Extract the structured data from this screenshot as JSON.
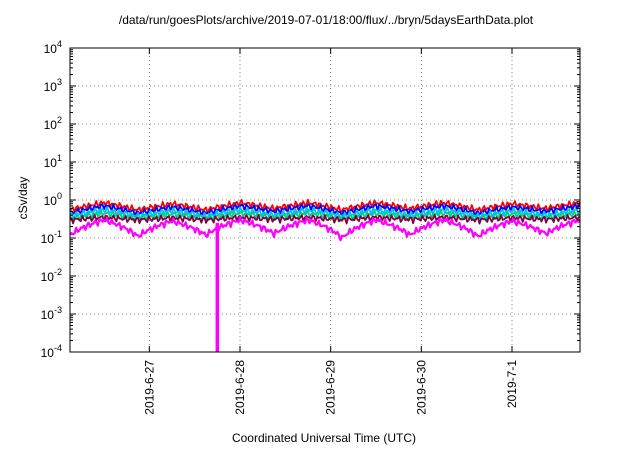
{
  "chart_data": {
    "type": "line",
    "title": "/data/run/goesPlots/archive/2019-07-01/18:00/flux/../bryn/5daysEarthData.plot",
    "xlabel": "Coordinated Universal Time (UTC)",
    "ylabel": "cSv/day",
    "y_scale": "log",
    "ylim": [
      0.0001,
      10000
    ],
    "y_ticks": [
      {
        "value": 0.0001,
        "base": "10",
        "exp": "-4"
      },
      {
        "value": 0.001,
        "base": "10",
        "exp": "-3"
      },
      {
        "value": 0.01,
        "base": "10",
        "exp": "-2"
      },
      {
        "value": 0.1,
        "base": "10",
        "exp": "-1"
      },
      {
        "value": 1,
        "base": "10",
        "exp": "0"
      },
      {
        "value": 10,
        "base": "10",
        "exp": "1"
      },
      {
        "value": 100,
        "base": "10",
        "exp": "2"
      },
      {
        "value": 1000,
        "base": "10",
        "exp": "3"
      },
      {
        "value": 10000,
        "base": "10",
        "exp": "4"
      }
    ],
    "x_range": [
      "2019-06-26T03:00",
      "2019-07-01T18:00"
    ],
    "x_ticks": [
      "2019-6-27",
      "2019-6-28",
      "2019-6-29",
      "2019-6-30",
      "2019-7-1"
    ],
    "grid": true,
    "grid_style": "dotted",
    "legend": "none",
    "series": [
      {
        "color": "#ff0000",
        "x": [
          "2019-06-26T03:00",
          "2019-06-26T12:00",
          "2019-06-26T21:00",
          "2019-06-27T06:00",
          "2019-06-27T15:00",
          "2019-06-28T00:00",
          "2019-06-28T09:00",
          "2019-06-28T18:00",
          "2019-06-29T03:00",
          "2019-06-29T12:00",
          "2019-06-29T21:00",
          "2019-06-30T06:00",
          "2019-06-30T15:00",
          "2019-07-01T00:00",
          "2019-07-01T09:00",
          "2019-07-01T18:00"
        ],
        "y": [
          0.55,
          0.85,
          0.55,
          0.8,
          0.55,
          0.85,
          0.6,
          0.85,
          0.55,
          0.85,
          0.6,
          0.85,
          0.55,
          0.8,
          0.6,
          0.85
        ]
      },
      {
        "color": "#0000ff",
        "x": [
          "2019-06-26T03:00",
          "2019-06-26T12:00",
          "2019-06-26T21:00",
          "2019-06-27T06:00",
          "2019-06-27T15:00",
          "2019-06-28T00:00",
          "2019-06-28T09:00",
          "2019-06-28T18:00",
          "2019-06-29T03:00",
          "2019-06-29T12:00",
          "2019-06-29T21:00",
          "2019-06-30T06:00",
          "2019-06-30T15:00",
          "2019-07-01T00:00",
          "2019-07-01T09:00",
          "2019-07-01T18:00"
        ],
        "y": [
          0.45,
          0.7,
          0.45,
          0.65,
          0.45,
          0.7,
          0.5,
          0.7,
          0.45,
          0.7,
          0.5,
          0.7,
          0.45,
          0.65,
          0.5,
          0.7
        ]
      },
      {
        "color": "#00c0ff",
        "x": [
          "2019-06-26T03:00",
          "2019-06-26T12:00",
          "2019-06-26T21:00",
          "2019-06-27T06:00",
          "2019-06-27T15:00",
          "2019-06-28T00:00",
          "2019-06-28T09:00",
          "2019-06-28T18:00",
          "2019-06-29T03:00",
          "2019-06-29T12:00",
          "2019-06-29T21:00",
          "2019-06-30T06:00",
          "2019-06-30T15:00",
          "2019-07-01T00:00",
          "2019-07-01T09:00",
          "2019-07-01T18:00"
        ],
        "y": [
          0.38,
          0.55,
          0.38,
          0.52,
          0.38,
          0.55,
          0.4,
          0.55,
          0.38,
          0.55,
          0.4,
          0.55,
          0.38,
          0.52,
          0.4,
          0.55
        ]
      },
      {
        "color": "#00d080",
        "x": [
          "2019-06-26T03:00",
          "2019-06-26T12:00",
          "2019-06-26T21:00",
          "2019-06-27T06:00",
          "2019-06-27T15:00",
          "2019-06-28T00:00",
          "2019-06-28T09:00",
          "2019-06-28T18:00",
          "2019-06-29T03:00",
          "2019-06-29T12:00",
          "2019-06-29T21:00",
          "2019-06-30T06:00",
          "2019-06-30T15:00",
          "2019-07-01T00:00",
          "2019-07-01T09:00",
          "2019-07-01T18:00"
        ],
        "y": [
          0.33,
          0.45,
          0.33,
          0.43,
          0.33,
          0.45,
          0.35,
          0.45,
          0.33,
          0.45,
          0.35,
          0.45,
          0.33,
          0.43,
          0.35,
          0.45
        ]
      },
      {
        "color": "#800040",
        "x": [
          "2019-06-26T03:00",
          "2019-06-26T12:00",
          "2019-06-26T21:00",
          "2019-06-27T06:00",
          "2019-06-27T15:00",
          "2019-06-28T00:00",
          "2019-06-28T09:00",
          "2019-06-28T18:00",
          "2019-06-29T03:00",
          "2019-06-29T12:00",
          "2019-06-29T21:00",
          "2019-06-30T06:00",
          "2019-06-30T15:00",
          "2019-07-01T00:00",
          "2019-07-01T09:00",
          "2019-07-01T18:00"
        ],
        "y": [
          0.3,
          0.35,
          0.3,
          0.34,
          0.3,
          0.35,
          0.31,
          0.35,
          0.3,
          0.35,
          0.31,
          0.35,
          0.3,
          0.34,
          0.31,
          0.35
        ]
      },
      {
        "color": "#ff00ff",
        "x": [
          "2019-06-26T03:00",
          "2019-06-26T12:00",
          "2019-06-26T21:00",
          "2019-06-27T06:00",
          "2019-06-27T15:00",
          "2019-06-28T00:00",
          "2019-06-28T09:00",
          "2019-06-28T18:00",
          "2019-06-29T03:00",
          "2019-06-29T12:00",
          "2019-06-29T21:00",
          "2019-06-30T06:00",
          "2019-06-30T15:00",
          "2019-07-01T00:00",
          "2019-07-01T09:00",
          "2019-07-01T18:00"
        ],
        "y": [
          0.12,
          0.3,
          0.11,
          0.28,
          0.12,
          0.3,
          0.13,
          0.3,
          0.1,
          0.3,
          0.12,
          0.3,
          0.11,
          0.28,
          0.13,
          0.3
        ]
      }
    ],
    "annotations": [
      {
        "series_color": "#ff00ff",
        "x": "2019-06-27T18:00",
        "y_min": 0.0001,
        "note": "drop"
      }
    ]
  }
}
